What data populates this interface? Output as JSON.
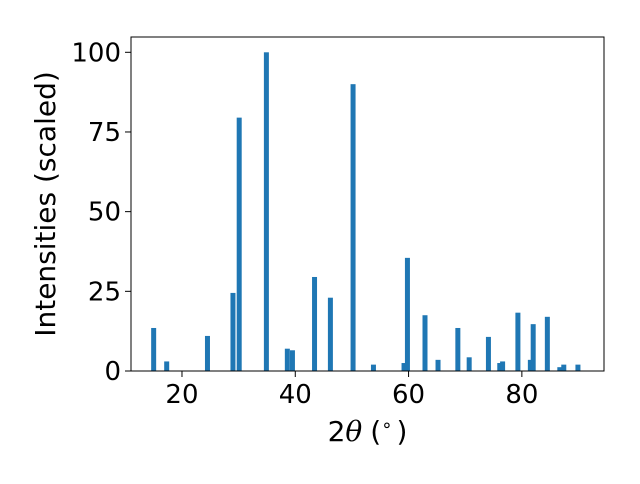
{
  "chart_data": {
    "type": "bar",
    "title": "",
    "xlabel": "2θ (°)",
    "xlabel_parts": {
      "prefix": "2",
      "theta": "θ",
      "unit": "(",
      "degree": "∘",
      "unit_close": ")"
    },
    "ylabel": "Intensities (scaled)",
    "xlim": [
      11.0,
      94.5
    ],
    "ylim": [
      0,
      104.8
    ],
    "xticks": [
      20,
      40,
      60,
      80
    ],
    "xtick_labels": [
      "20",
      "40",
      "60",
      "80"
    ],
    "yticks": [
      0,
      25,
      50,
      75,
      100
    ],
    "ytick_labels": [
      "0",
      "25",
      "50",
      "75",
      "100"
    ],
    "bar_color": "#1f77b4",
    "grid": false,
    "legend": "none",
    "x": [
      15.0,
      17.3,
      24.5,
      29.0,
      30.1,
      34.9,
      38.6,
      39.5,
      43.4,
      46.2,
      50.2,
      53.8,
      59.2,
      59.8,
      62.9,
      65.2,
      68.7,
      70.7,
      74.1,
      76.1,
      76.6,
      79.3,
      81.5,
      82.0,
      84.5,
      86.7,
      87.4,
      89.9
    ],
    "values": [
      13.5,
      3.0,
      11.0,
      24.5,
      79.5,
      100.0,
      7.0,
      6.5,
      29.5,
      23.0,
      90.0,
      2.0,
      2.5,
      35.5,
      17.5,
      3.5,
      13.5,
      4.3,
      10.7,
      2.5,
      3.0,
      18.3,
      3.5,
      14.7,
      17.0,
      1.2,
      2.0,
      2.0
    ]
  }
}
